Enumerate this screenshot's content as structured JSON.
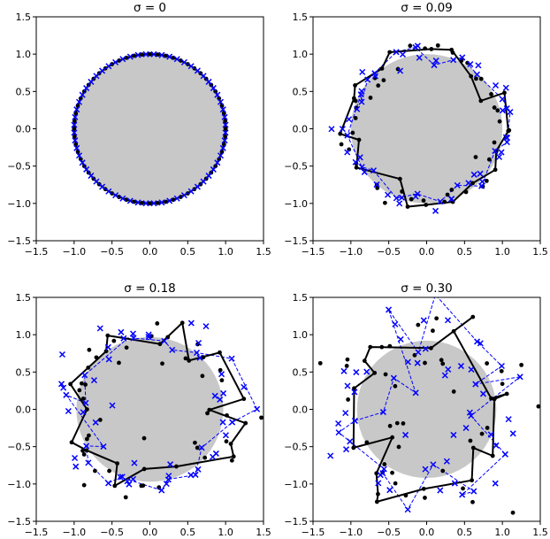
{
  "chart_data": [
    {
      "type": "scatter",
      "title": "σ = 0",
      "sigma": 0,
      "xlim": [
        -1.5,
        1.5
      ],
      "ylim": [
        -1.5,
        1.5
      ],
      "xticks": [
        "−1.5",
        "−1.0",
        "−0.5",
        "0.0",
        "0.5",
        "1.0",
        "1.5"
      ],
      "yticks": [
        "−1.5",
        "−1.0",
        "−0.5",
        "0.0",
        "0.5",
        "1.0",
        "1.5"
      ],
      "disk_radius": 1.0,
      "disk_center": [
        0,
        0
      ],
      "n_points": 60,
      "grid": false,
      "legend": "none",
      "colors": {
        "disk": "#c8c8c8",
        "black_series": "#000000",
        "blue_series": "#0000ff"
      }
    },
    {
      "type": "scatter",
      "title": "σ = 0.09",
      "sigma": 0.09,
      "xlim": [
        -1.5,
        1.5
      ],
      "ylim": [
        -1.5,
        1.5
      ],
      "xticks": [
        "−1.5",
        "−1.0",
        "−0.5",
        "0.0",
        "0.5",
        "1.0",
        "1.5"
      ],
      "yticks": [
        "−1.5",
        "−1.0",
        "−0.5",
        "0.0",
        "0.5",
        "1.0",
        "1.5"
      ],
      "disk_radius": 1.0,
      "disk_center": [
        0,
        0
      ],
      "n_points": 60,
      "grid": false,
      "legend": "none",
      "colors": {
        "disk": "#c8c8c8",
        "black_series": "#000000",
        "blue_series": "#0000ff"
      }
    },
    {
      "type": "scatter",
      "title": "σ = 0.18",
      "sigma": 0.18,
      "xlim": [
        -1.5,
        1.5
      ],
      "ylim": [
        -1.5,
        1.5
      ],
      "xticks": [
        "−1.5",
        "−1.0",
        "−0.5",
        "0.0",
        "0.5",
        "1.0",
        "1.5"
      ],
      "yticks": [
        "−1.5",
        "−1.0",
        "−0.5",
        "0.0",
        "0.5",
        "1.0",
        "1.5"
      ],
      "disk_radius": 0.97,
      "disk_center": [
        0,
        0
      ],
      "n_points": 60,
      "grid": false,
      "legend": "none",
      "colors": {
        "disk": "#c8c8c8",
        "black_series": "#000000",
        "blue_series": "#0000ff"
      }
    },
    {
      "type": "scatter",
      "title": "σ = 0.30",
      "sigma": 0.3,
      "xlim": [
        -1.5,
        1.5
      ],
      "ylim": [
        -1.5,
        1.5
      ],
      "xticks": [
        "−1.5",
        "−1.0",
        "−0.5",
        "0.0",
        "0.5",
        "1.0",
        "1.5"
      ],
      "yticks": [
        "−1.5",
        "−1.0",
        "−0.5",
        "0.0",
        "0.5",
        "1.0",
        "1.5"
      ],
      "disk_radius": 0.92,
      "disk_center": [
        0,
        0
      ],
      "n_points": 60,
      "grid": false,
      "legend": "none",
      "colors": {
        "disk": "#c8c8c8",
        "black_series": "#000000",
        "blue_series": "#0000ff"
      }
    }
  ]
}
